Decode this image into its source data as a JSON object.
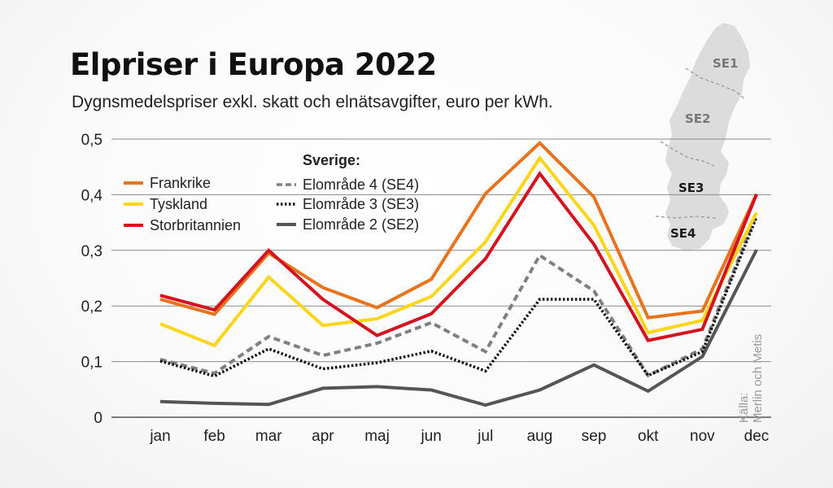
{
  "header": {
    "title": "Elpriser i Europa 2022",
    "subtitle": "Dygnsmedelspriser exkl. skatt och elnätsavgifter, euro per kWh."
  },
  "source": {
    "line1": "Källa:",
    "line2": "Merlin och Metis"
  },
  "map": {
    "regions": [
      "SE1",
      "SE2",
      "SE3",
      "SE4"
    ]
  },
  "chart_data": {
    "type": "line",
    "x": [
      "jan",
      "feb",
      "mar",
      "apr",
      "maj",
      "jun",
      "jul",
      "aug",
      "sep",
      "okt",
      "nov",
      "dec"
    ],
    "yticks": [
      "0",
      "0,1",
      "0,2",
      "0,3",
      "0,4",
      "0,5"
    ],
    "ylim": [
      0,
      0.5
    ],
    "grid": true,
    "legend_heading": "Sverige:",
    "series": [
      {
        "name": "Frankrike",
        "color": "#e8731f",
        "style": "solid",
        "values": [
          0.212,
          0.185,
          0.295,
          0.233,
          0.197,
          0.248,
          0.402,
          0.493,
          0.396,
          0.179,
          0.191,
          0.401
        ]
      },
      {
        "name": "Tyskland",
        "color": "#fdd51b",
        "style": "solid",
        "values": [
          0.168,
          0.129,
          0.252,
          0.165,
          0.177,
          0.217,
          0.315,
          0.466,
          0.345,
          0.152,
          0.174,
          0.368
        ]
      },
      {
        "name": "Storbritannien",
        "color": "#d3141e",
        "style": "solid",
        "values": [
          0.219,
          0.193,
          0.3,
          0.212,
          0.147,
          0.186,
          0.285,
          0.438,
          0.311,
          0.138,
          0.158,
          0.401
        ]
      },
      {
        "name": "Elområde 4 (SE4)",
        "color": "#808080",
        "style": "dashed",
        "values": [
          0.104,
          0.079,
          0.145,
          0.111,
          0.133,
          0.17,
          0.118,
          0.291,
          0.227,
          0.075,
          0.123,
          0.365
        ]
      },
      {
        "name": "Elområde 3 (SE3)",
        "color": "#111111",
        "style": "dotted",
        "values": [
          0.101,
          0.074,
          0.123,
          0.087,
          0.098,
          0.119,
          0.083,
          0.212,
          0.212,
          0.075,
          0.118,
          0.36
        ]
      },
      {
        "name": "Elområde 2 (SE2)",
        "color": "#555555",
        "style": "solid",
        "values": [
          0.028,
          0.025,
          0.023,
          0.052,
          0.055,
          0.049,
          0.022,
          0.049,
          0.094,
          0.047,
          0.109,
          0.301
        ]
      }
    ]
  }
}
